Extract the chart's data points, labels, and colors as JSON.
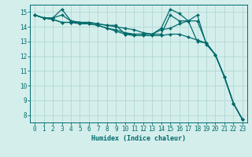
{
  "title": "",
  "xlabel": "Humidex (Indice chaleur)",
  "xlim": [
    -0.5,
    23.5
  ],
  "ylim": [
    7.5,
    15.5
  ],
  "xticks": [
    0,
    1,
    2,
    3,
    4,
    5,
    6,
    7,
    8,
    9,
    10,
    11,
    12,
    13,
    14,
    15,
    16,
    17,
    18,
    19,
    20,
    21,
    22,
    23
  ],
  "yticks": [
    8,
    9,
    10,
    11,
    12,
    13,
    14,
    15
  ],
  "background_color": "#d4eeec",
  "grid_color": "#b0d8d5",
  "line_color": "#006b6b",
  "series": [
    [
      14.8,
      14.6,
      14.6,
      15.2,
      14.4,
      14.3,
      14.3,
      14.2,
      14.1,
      14.1,
      13.5,
      13.5,
      13.5,
      13.5,
      13.9,
      15.2,
      14.9,
      14.4,
      14.8,
      12.8,
      12.1,
      10.6,
      8.8,
      7.7
    ],
    [
      14.8,
      14.6,
      14.6,
      14.8,
      14.4,
      14.3,
      14.3,
      14.2,
      14.1,
      14.0,
      13.9,
      13.8,
      13.6,
      13.5,
      13.5,
      14.8,
      14.4,
      14.4,
      14.4,
      12.9,
      12.1,
      10.6,
      8.8,
      7.7
    ],
    [
      14.8,
      14.6,
      14.5,
      14.3,
      14.3,
      14.3,
      14.2,
      14.1,
      13.9,
      13.8,
      13.6,
      13.5,
      13.5,
      13.5,
      13.8,
      13.9,
      14.2,
      14.4,
      13.0,
      12.9,
      12.1,
      10.6,
      8.8,
      7.7
    ],
    [
      14.8,
      14.6,
      14.5,
      14.3,
      14.3,
      14.2,
      14.2,
      14.1,
      13.9,
      13.7,
      13.5,
      13.4,
      13.4,
      13.4,
      13.4,
      13.5,
      13.5,
      13.3,
      13.1,
      12.9,
      12.1,
      10.6,
      8.8,
      7.7
    ]
  ],
  "figsize": [
    3.2,
    2.0
  ],
  "dpi": 100,
  "xlabel_fontsize": 6,
  "tick_fontsize": 5.5,
  "linewidth": 0.9,
  "markersize": 2.0
}
